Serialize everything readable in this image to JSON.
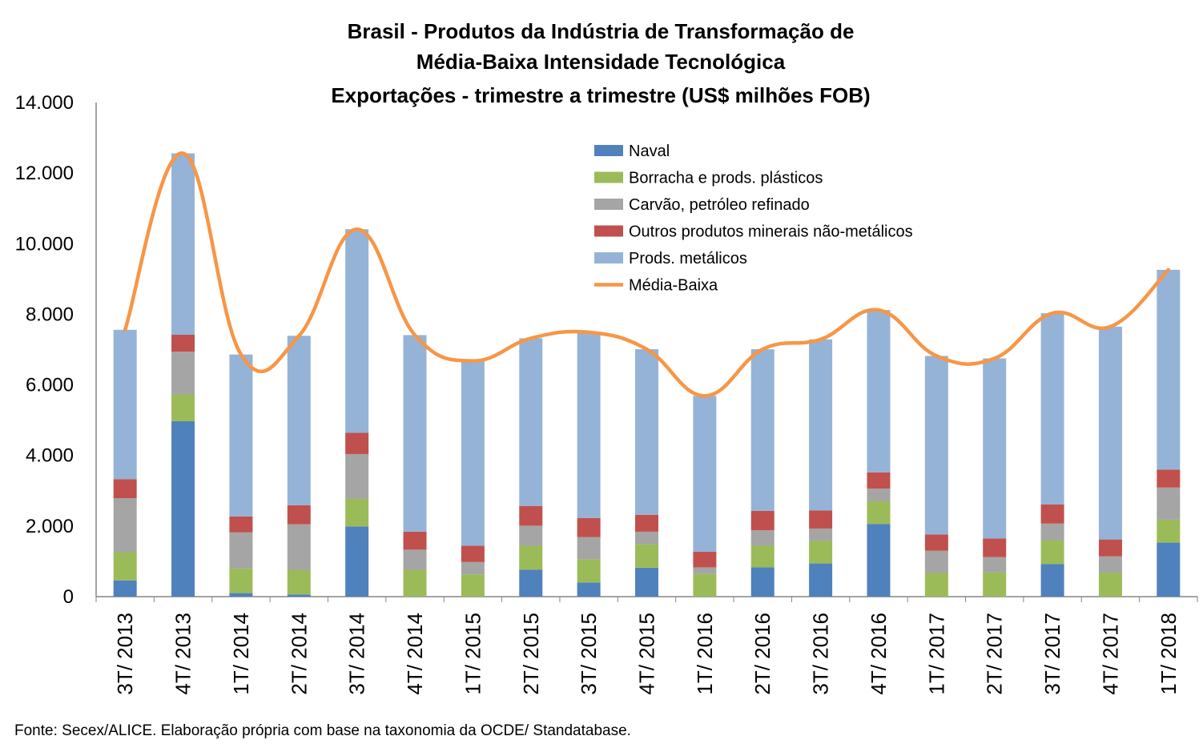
{
  "chart_data": {
    "type": "bar",
    "stacked": true,
    "title": [
      "Brasil - Produtos da Indústria de Transformação de",
      "Média-Baixa Intensidade Tecnológica",
      "Exportações - trimestre a trimestre (US$ milhões FOB)"
    ],
    "categories": [
      "3T/ 2013",
      "4T/ 2013",
      "1T/ 2014",
      "2T/ 2014",
      "3T/ 2014",
      "4T/ 2014",
      "1T/ 2015",
      "2T/ 2015",
      "3T/ 2015",
      "4T/ 2015",
      "1T/ 2016",
      "2T/ 2016",
      "3T/ 2016",
      "4T/ 2016",
      "1T/ 2017",
      "2T/ 2017",
      "3T/ 2017",
      "4T/ 2017",
      "1T/ 2018"
    ],
    "ylim": [
      0,
      14000
    ],
    "yticks": [
      0,
      2000,
      4000,
      6000,
      8000,
      10000,
      12000,
      14000
    ],
    "ytick_labels": [
      "0",
      "2.000",
      "4.000",
      "6.000",
      "8.000",
      "10.000",
      "12.000",
      "14.000"
    ],
    "series": [
      {
        "name": "Naval",
        "color": "#4f81bd",
        "values": [
          460,
          4970,
          100,
          60,
          1990,
          0,
          0,
          760,
          400,
          820,
          0,
          830,
          940,
          2060,
          0,
          0,
          920,
          0,
          1530
        ]
      },
      {
        "name": "Borracha e prods. plásticos",
        "color": "#9bbb59",
        "values": [
          800,
          760,
          700,
          700,
          780,
          760,
          630,
          680,
          660,
          670,
          640,
          610,
          650,
          640,
          670,
          690,
          680,
          680,
          650
        ]
      },
      {
        "name": "Carvão, petróleo refinado",
        "color": "#a5a5a5",
        "values": [
          1530,
          1210,
          1020,
          1290,
          1270,
          570,
          350,
          570,
          630,
          350,
          190,
          440,
          340,
          360,
          630,
          430,
          470,
          460,
          910
        ]
      },
      {
        "name": "Outros produtos minerais não-metálicos",
        "color": "#c0504d",
        "values": [
          540,
          480,
          450,
          540,
          600,
          510,
          460,
          560,
          540,
          480,
          440,
          550,
          510,
          460,
          460,
          530,
          540,
          480,
          510
        ]
      },
      {
        "name": "Prods. metálicos",
        "color": "#95b3d7",
        "values": [
          4230,
          5140,
          4590,
          4800,
          5770,
          5570,
          5240,
          4750,
          5260,
          4690,
          4420,
          4580,
          4850,
          4600,
          5060,
          5100,
          5420,
          6030,
          5660
        ]
      }
    ],
    "line_series": {
      "name": "Média-Baixa",
      "color": "#f79646",
      "values": [
        7560,
        12560,
        6860,
        7390,
        10410,
        7410,
        6680,
        7320,
        7490,
        7010,
        5690,
        7010,
        7290,
        8120,
        6820,
        6750,
        8030,
        7650,
        9260
      ]
    },
    "legend_position": "top-center",
    "grid": false
  },
  "footer": {
    "source": "Fonte: Secex/ALICE. Elaboração própria com base na taxonomia da OCDE/ Standatabase."
  }
}
